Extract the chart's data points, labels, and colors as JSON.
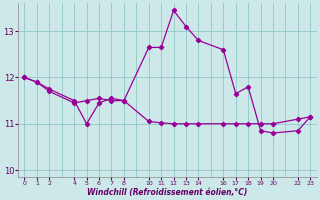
{
  "xlabel": "Windchill (Refroidissement éolien,°C)",
  "background_color": "#cce8e8",
  "line_color": "#990099",
  "grid_color": "#99cccc",
  "line1_x": [
    0,
    1,
    2,
    4,
    5,
    6,
    7,
    8,
    10,
    11,
    12,
    13,
    14,
    16,
    17,
    18,
    19,
    20,
    22,
    23
  ],
  "line1_y": [
    12.0,
    11.9,
    11.75,
    11.5,
    11.0,
    11.45,
    11.55,
    11.5,
    11.05,
    11.02,
    11.0,
    11.0,
    11.0,
    11.0,
    11.0,
    11.0,
    11.0,
    11.0,
    11.1,
    11.15
  ],
  "line2_x": [
    0,
    1,
    2,
    4,
    5,
    6,
    7,
    8,
    10,
    11,
    12,
    13,
    14,
    16,
    17,
    18,
    19,
    20,
    22,
    23
  ],
  "line2_y": [
    12.0,
    11.9,
    11.7,
    11.45,
    11.5,
    11.55,
    11.5,
    11.5,
    12.65,
    12.65,
    13.45,
    13.1,
    12.8,
    12.6,
    11.65,
    11.8,
    10.85,
    10.8,
    10.85,
    11.15
  ],
  "ylim": [
    9.85,
    13.6
  ],
  "yticks": [
    10,
    11,
    12,
    13
  ],
  "xlim": [
    -0.5,
    23.5
  ],
  "xtick_positions": [
    0,
    1,
    2,
    4,
    5,
    6,
    7,
    8,
    10,
    11,
    12,
    13,
    14,
    16,
    17,
    18,
    19,
    20,
    22,
    23
  ],
  "xtick_labels": [
    "0",
    "1",
    "2",
    "4",
    "5",
    "6",
    "7",
    "8",
    "10",
    "11",
    "12",
    "13",
    "14",
    "16",
    "17",
    "18",
    "19",
    "20",
    "22",
    "23"
  ]
}
